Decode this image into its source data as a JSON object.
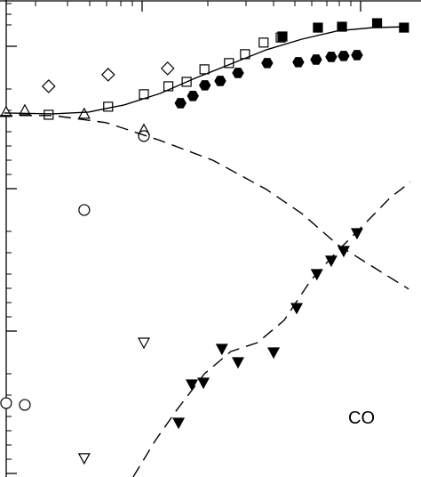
{
  "chart_data": {
    "type": "scatter",
    "xscale": "log",
    "yscale": "log",
    "xlim": [
      0.224,
      18.9
    ],
    "ylim": [
      0.0944,
      211
    ],
    "annotation": "CO",
    "color": "#000000",
    "series": [
      {
        "marker": "diamond-open",
        "x": [
          0.374,
          0.7,
          1.31
        ],
        "values": [
          52.3,
          63.1,
          69.8
        ]
      },
      {
        "marker": "square-open",
        "x": [
          0.374,
          0.7,
          1.02,
          1.32,
          1.6,
          1.93,
          2.5,
          2.96,
          3.6,
          4.31
        ],
        "values": [
          33.0,
          37.6,
          46.0,
          52.3,
          56.2,
          68.8,
          76.1,
          87.9,
          106,
          115
        ]
      },
      {
        "marker": "square-filled",
        "x": [
          4.39,
          6.38,
          8.22,
          11.9,
          15.8
        ],
        "values": [
          117,
          135,
          137,
          145,
          135
        ]
      },
      {
        "marker": "hexagon-filled",
        "x": [
          1.5,
          1.71,
          1.94,
          2.28,
          2.75,
          3.74,
          5.19,
          6.26,
          7.34,
          8.37,
          9.63
        ],
        "values": [
          39.8,
          44.7,
          53.1,
          57.0,
          64.9,
          76.1,
          77.2,
          80.5,
          84.1,
          85.4,
          86.6
        ]
      },
      {
        "marker": "triangle-up-open",
        "x": [
          0.239,
          0.291,
          0.544,
          1.02
        ],
        "values": [
          34.5,
          35.5,
          33.5,
          25.9
        ]
      },
      {
        "marker": "circle-open",
        "x": [
          1.02,
          0.544,
          0.239,
          0.291
        ],
        "values": [
          23.4,
          7.08,
          0.312,
          0.303
        ]
      },
      {
        "marker": "triangle-down-open",
        "x": [
          1.02,
          0.544
        ],
        "values": [
          0.829,
          0.128
        ]
      },
      {
        "marker": "triangle-down-filled",
        "x": [
          1.47,
          1.69,
          1.91,
          2.32,
          2.75,
          4.0,
          5.1,
          6.31,
          7.34,
          8.37,
          9.63
        ],
        "values": [
          0.227,
          0.422,
          0.434,
          0.75,
          0.604,
          0.708,
          1.45,
          2.51,
          3.12,
          3.65,
          4.87
        ]
      },
      {
        "line": "solid",
        "x": [
          0.234,
          0.392,
          0.57,
          0.829,
          1.21,
          1.75,
          2.55,
          3.71,
          5.39,
          7.84,
          11.4,
          16.6
        ],
        "values": [
          34.0,
          33.5,
          34.5,
          38.7,
          46.6,
          59.6,
          75.0,
          94.4,
          112,
          128,
          135,
          137
        ]
      },
      {
        "line": "dashed",
        "x": [
          0.224,
          0.392,
          0.688,
          1.21,
          2.11,
          3.71,
          5.39,
          7.84,
          11.4,
          16.6
        ],
        "values": [
          32.6,
          32.6,
          29.0,
          21.8,
          15.8,
          9.86,
          6.68,
          4.04,
          2.82,
          1.97
        ]
      },
      {
        "line": "dashed",
        "x": [
          0.911,
          1.15,
          1.45,
          1.93,
          2.55,
          3.38,
          4.47,
          5.92,
          7.84,
          10.4,
          13.7,
          16.9
        ],
        "values": [
          0.0944,
          0.17,
          0.282,
          0.501,
          0.718,
          0.829,
          1.19,
          2.27,
          3.65,
          5.62,
          8.66,
          11.1
        ]
      }
    ]
  }
}
